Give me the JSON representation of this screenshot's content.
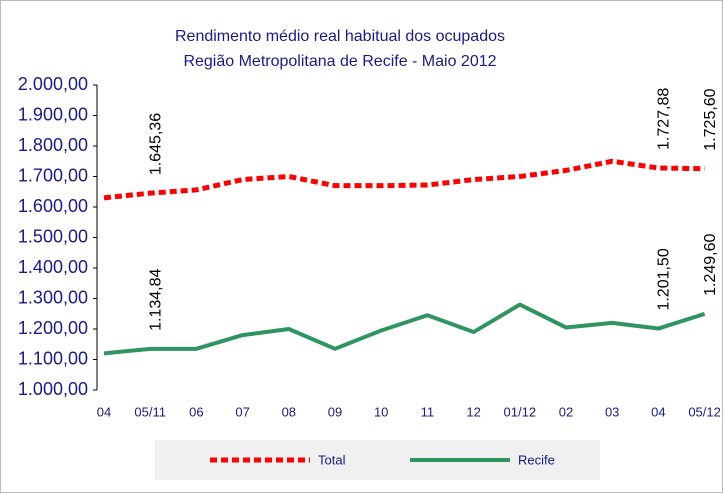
{
  "chart_data": {
    "type": "line",
    "title": "Rendimento médio real habitual dos ocupados",
    "subtitle": "Região Metropolitana de Recife - Maio 2012",
    "categories": [
      "04",
      "05/11",
      "06",
      "07",
      "08",
      "09",
      "10",
      "11",
      "12",
      "01/12",
      "02",
      "03",
      "04",
      "05/12"
    ],
    "series": [
      {
        "name": "Total",
        "color": "#ff0000",
        "dashed": true,
        "values": [
          1630,
          1645.36,
          1656,
          1690,
          1700,
          1670,
          1670,
          1672,
          1690,
          1700,
          1720,
          1750,
          1727.88,
          1725.6
        ],
        "value_labels": [
          null,
          "1.645,36",
          null,
          null,
          null,
          null,
          null,
          null,
          null,
          null,
          null,
          null,
          "1.727,88",
          "1.725,60"
        ]
      },
      {
        "name": "Recife",
        "color": "#2e9460",
        "dashed": false,
        "values": [
          1120,
          1134.84,
          1135,
          1180,
          1200,
          1135,
          1195,
          1245,
          1190,
          1280,
          1205,
          1220,
          1201.5,
          1249.6
        ],
        "value_labels": [
          null,
          "1.134,84",
          null,
          null,
          null,
          null,
          null,
          null,
          null,
          null,
          null,
          null,
          "1.201,50",
          "1.249,60"
        ]
      }
    ],
    "ylim": [
      1000,
      2000
    ],
    "yticks": [
      {
        "value": 1000,
        "label": "1.000,00"
      },
      {
        "value": 1100,
        "label": "1.100,00"
      },
      {
        "value": 1200,
        "label": "1.200,00"
      },
      {
        "value": 1300,
        "label": "1.300,00"
      },
      {
        "value": 1400,
        "label": "1.400,00"
      },
      {
        "value": 1500,
        "label": "1.500,00"
      },
      {
        "value": 1600,
        "label": "1.600,00"
      },
      {
        "value": 1700,
        "label": "1.700,00"
      },
      {
        "value": 1800,
        "label": "1.800,00"
      },
      {
        "value": 1900,
        "label": "1.900,00"
      },
      {
        "value": 2000,
        "label": "2.000,00"
      }
    ],
    "grid": false,
    "legend": "bottom"
  }
}
